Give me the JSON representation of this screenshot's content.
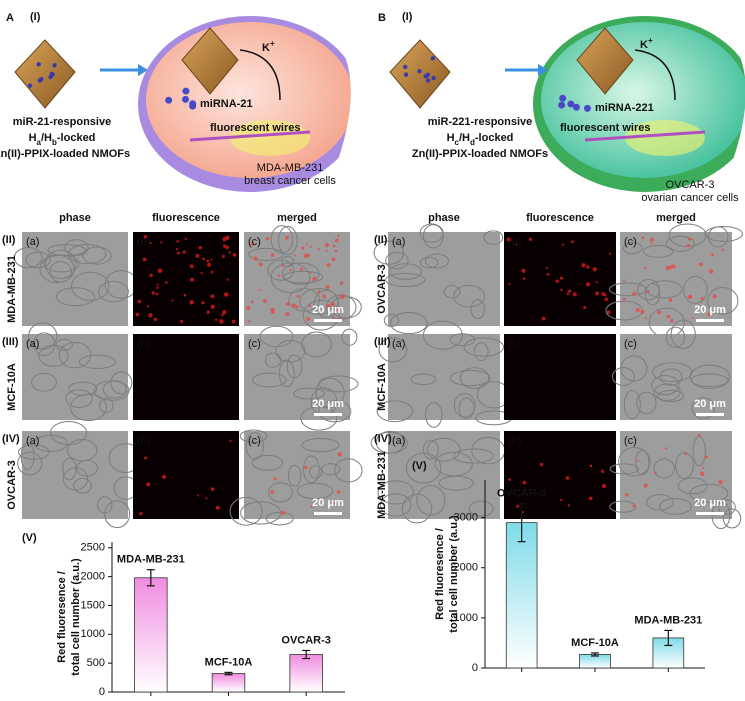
{
  "figure": {
    "panels": [
      {
        "letter": "A",
        "sub": "(I)",
        "nmof": {
          "line1": "miR-21-responsive",
          "line2": [
            "H",
            "a",
            "/H",
            "b",
            "-locked"
          ],
          "line3": "Zn(II)-PPIX-loaded NMOFs"
        },
        "ion": [
          "K",
          "+"
        ],
        "mirna": "miRNA-21",
        "wires": "fluorescent wires",
        "cell": [
          "MDA-MB-231",
          "breast cancer cells"
        ],
        "columns": [
          "phase",
          "fluorescence",
          "merged"
        ],
        "rows": [
          {
            "label": "(II)",
            "cell": "MDA-MB-231"
          },
          {
            "label": "(III)",
            "cell": "MCF-10A"
          },
          {
            "label": "(IV)",
            "cell": "OVCAR-3"
          }
        ],
        "subpanels": [
          "(a)",
          "(b)",
          "(c)"
        ],
        "scale_bar": "20 μm"
      },
      {
        "letter": "B",
        "sub": "(I)",
        "nmof": {
          "line1": "miR-221-responsive",
          "line2": [
            "H",
            "c",
            "/H",
            "d",
            "-locked"
          ],
          "line3": "Zn(II)-PPIX-loaded NMOFs"
        },
        "ion": [
          "K",
          "+"
        ],
        "mirna": "miRNA-221",
        "wires": "fluorescent wires",
        "cell": [
          "OVCAR-3",
          "ovarian cancer cells"
        ],
        "columns": [
          "phase",
          "fluorescence",
          "merged"
        ],
        "rows": [
          {
            "label": "(II)",
            "cell": "OVCAR-3"
          },
          {
            "label": "(III)",
            "cell": "MCF-10A"
          },
          {
            "label": "(IV)",
            "cell": "MDA-MB-231"
          }
        ],
        "subpanels": [
          "(a)",
          "(b)",
          "(c)"
        ],
        "scale_bar": "20 μm"
      }
    ]
  },
  "chart_data": [
    {
      "type": "bar",
      "panel_label": "(V)",
      "ylabel": [
        "Red fluoresence /",
        "total cell number (a.u.)"
      ],
      "categories": [
        "MDA-MB-231",
        "MCF-10A",
        "OVCAR-3"
      ],
      "values": [
        1980,
        320,
        650
      ],
      "errors": [
        140,
        20,
        70
      ],
      "color": "#f08ce0",
      "ylim": [
        0,
        2600
      ],
      "yticks": [
        0,
        500,
        1000,
        1500,
        2000,
        2500
      ]
    },
    {
      "type": "bar",
      "panel_label": "(V)",
      "ylabel": [
        "Red fluoresence /",
        "total cell number (a.u.)"
      ],
      "categories": [
        "OVCAR-3",
        "MCF-10A",
        "MDA-MB-231"
      ],
      "values": [
        2900,
        270,
        600
      ],
      "errors": [
        380,
        30,
        150
      ],
      "color": "#7fdbe8",
      "ylim": [
        0,
        3750
      ],
      "yticks": [
        0,
        1000,
        2000,
        3000
      ]
    }
  ]
}
